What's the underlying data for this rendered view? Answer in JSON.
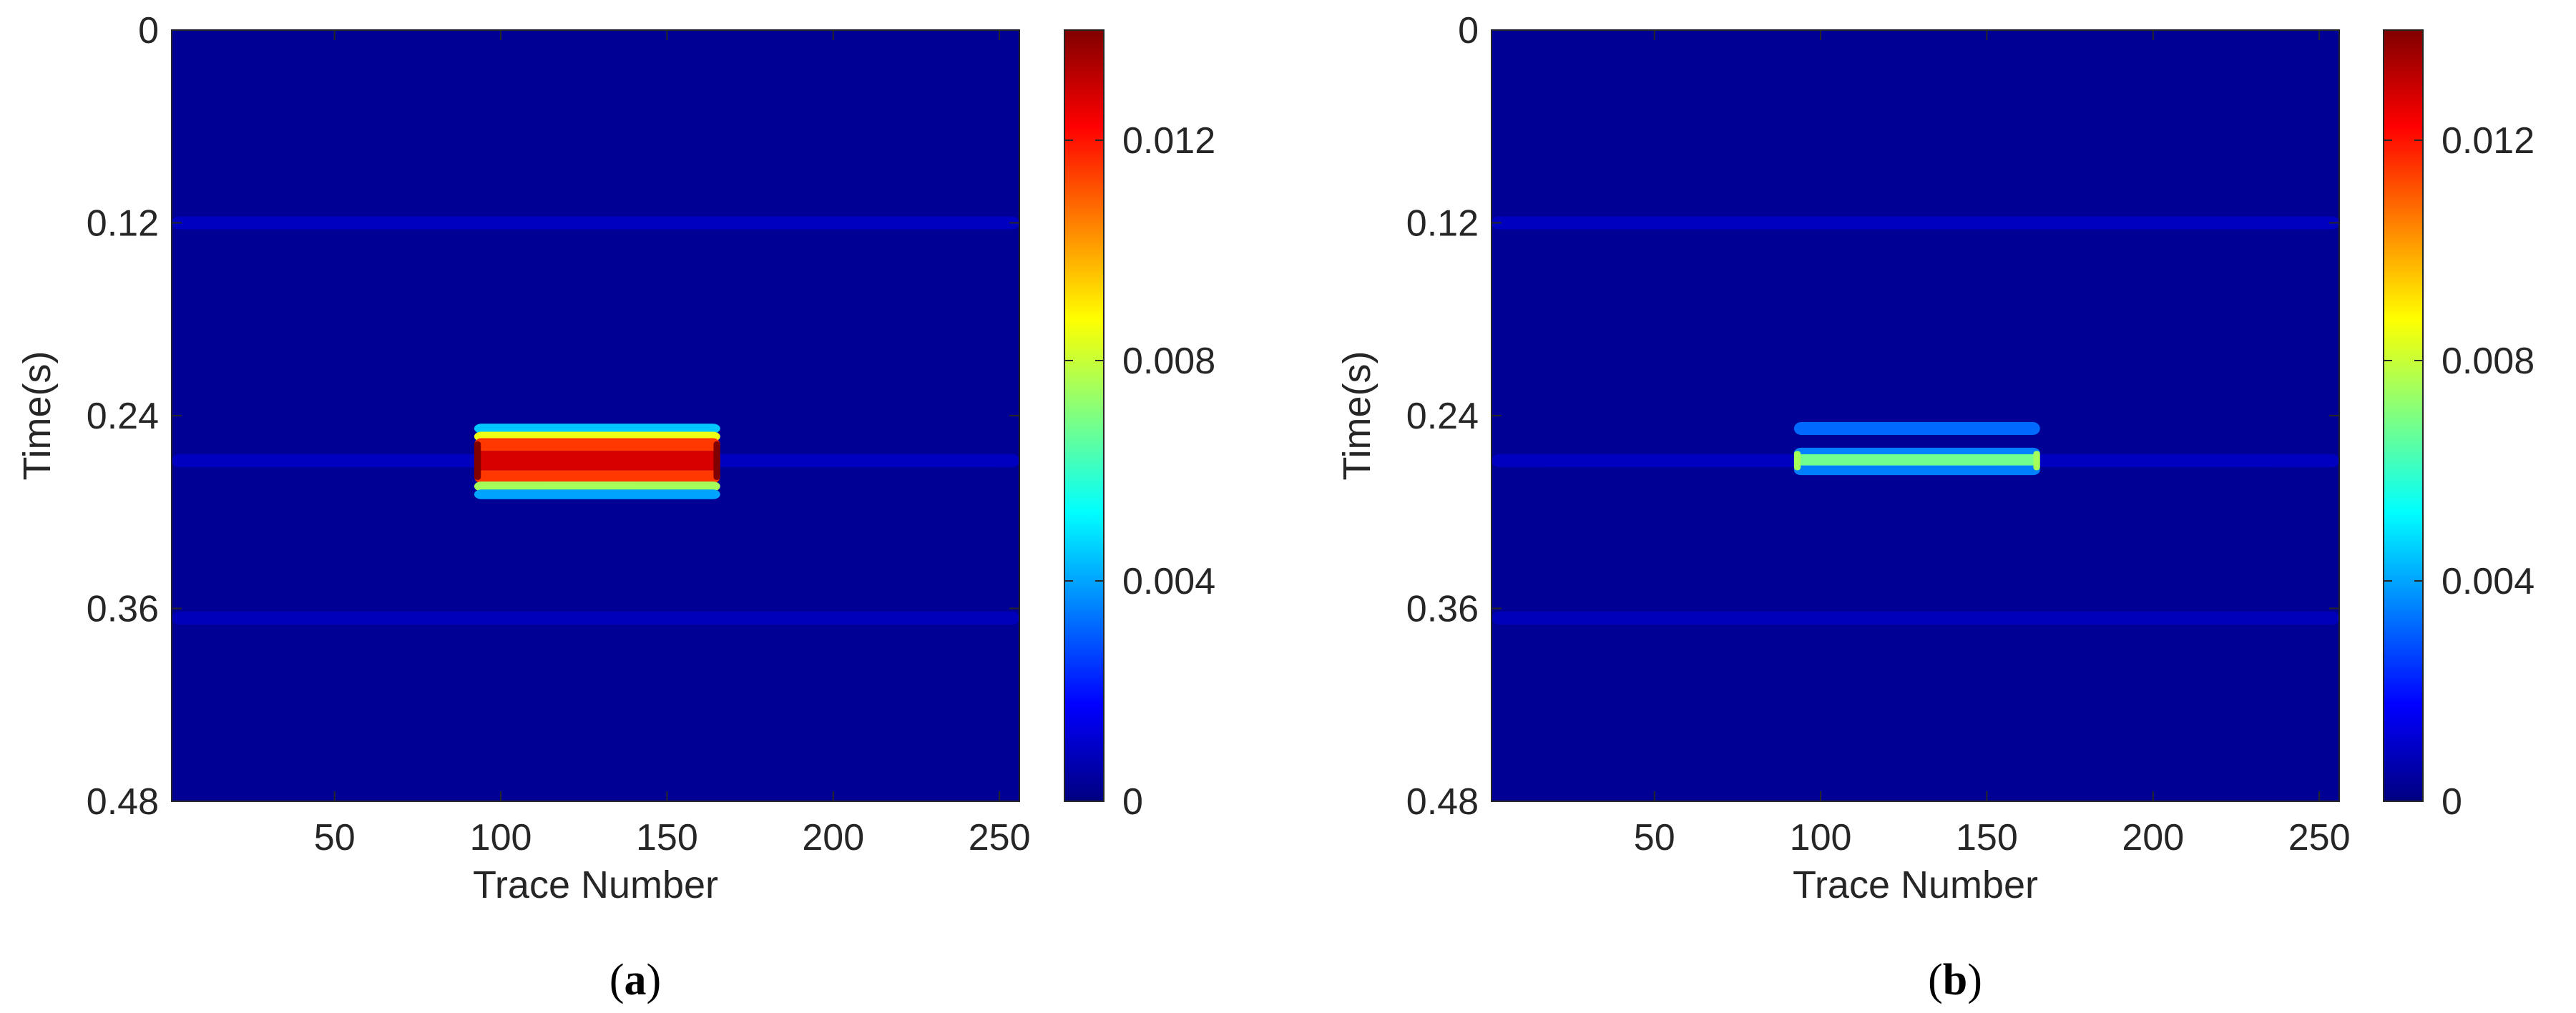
{
  "chart_data": [
    {
      "type": "heatmap",
      "panel_label": "a",
      "xlabel": "Trace Number",
      "ylabel": "Time(s)",
      "xlim": [
        1,
        256
      ],
      "ylim": [
        0,
        0.48
      ],
      "x_ticks": [
        50,
        100,
        150,
        200,
        250
      ],
      "y_ticks": [
        0,
        0.12,
        0.24,
        0.36,
        0.48
      ],
      "y_tick_labels": [
        "0",
        "0.12",
        "0.24",
        "0.36",
        "0.48"
      ],
      "colormap": "jet",
      "colorbar": {
        "min": 0,
        "max": 0.014,
        "ticks": [
          0,
          0.004,
          0.008,
          0.012
        ],
        "tick_labels": [
          "0",
          "0.004",
          "0.008",
          "0.012"
        ]
      },
      "background_value": 0.0003,
      "features": [
        {
          "kind": "band",
          "x_range": [
            1,
            256
          ],
          "t_center": 0.12,
          "t_half_width": 0.004,
          "value": 0.0009
        },
        {
          "kind": "band",
          "x_range": [
            1,
            256
          ],
          "t_center": 0.268,
          "t_half_width": 0.004,
          "value": 0.0009
        },
        {
          "kind": "band",
          "x_range": [
            1,
            256
          ],
          "t_center": 0.366,
          "t_half_width": 0.004,
          "value": 0.0008
        },
        {
          "kind": "band",
          "x_range": [
            92,
            166
          ],
          "t_center": 0.248,
          "t_half_width": 0.003,
          "value": 0.0045
        },
        {
          "kind": "band",
          "x_range": [
            92,
            166
          ],
          "t_center": 0.253,
          "t_half_width": 0.003,
          "value": 0.0085
        },
        {
          "kind": "band",
          "x_range": [
            92,
            166
          ],
          "t_center": 0.258,
          "t_half_width": 0.004,
          "value": 0.0115
        },
        {
          "kind": "band",
          "x_range": [
            92,
            166
          ],
          "t_center": 0.268,
          "t_half_width": 0.006,
          "value": 0.0128
        },
        {
          "kind": "band",
          "x_range": [
            92,
            166
          ],
          "t_center": 0.278,
          "t_half_width": 0.004,
          "value": 0.0115
        },
        {
          "kind": "band",
          "x_range": [
            92,
            166
          ],
          "t_center": 0.284,
          "t_half_width": 0.003,
          "value": 0.0075
        },
        {
          "kind": "band",
          "x_range": [
            92,
            166
          ],
          "t_center": 0.289,
          "t_half_width": 0.003,
          "value": 0.004
        },
        {
          "kind": "band",
          "x_range": [
            92,
            94
          ],
          "t_center": 0.268,
          "t_half_width": 0.012,
          "value": 0.014
        },
        {
          "kind": "band",
          "x_range": [
            164,
            166
          ],
          "t_center": 0.268,
          "t_half_width": 0.012,
          "value": 0.014
        }
      ]
    },
    {
      "type": "heatmap",
      "panel_label": "b",
      "xlabel": "Trace Number",
      "ylabel": "Time(s)",
      "xlim": [
        1,
        256
      ],
      "ylim": [
        0,
        0.48
      ],
      "x_ticks": [
        50,
        100,
        150,
        200,
        250
      ],
      "y_ticks": [
        0,
        0.12,
        0.24,
        0.36,
        0.48
      ],
      "y_tick_labels": [
        "0",
        "0.12",
        "0.24",
        "0.36",
        "0.48"
      ],
      "colormap": "jet",
      "colorbar": {
        "min": 0,
        "max": 0.014,
        "ticks": [
          0,
          0.004,
          0.008,
          0.012
        ],
        "tick_labels": [
          "0",
          "0.004",
          "0.008",
          "0.012"
        ]
      },
      "background_value": 0.0003,
      "features": [
        {
          "kind": "band",
          "x_range": [
            1,
            256
          ],
          "t_center": 0.12,
          "t_half_width": 0.004,
          "value": 0.0009
        },
        {
          "kind": "band",
          "x_range": [
            1,
            256
          ],
          "t_center": 0.268,
          "t_half_width": 0.004,
          "value": 0.0009
        },
        {
          "kind": "band",
          "x_range": [
            1,
            256
          ],
          "t_center": 0.366,
          "t_half_width": 0.004,
          "value": 0.0008
        },
        {
          "kind": "band",
          "x_range": [
            92,
            166
          ],
          "t_center": 0.248,
          "t_half_width": 0.004,
          "value": 0.0032
        },
        {
          "kind": "band",
          "x_range": [
            92,
            166
          ],
          "t_center": 0.263,
          "t_half_width": 0.003,
          "value": 0.0035
        },
        {
          "kind": "band",
          "x_range": [
            92,
            166
          ],
          "t_center": 0.268,
          "t_half_width": 0.004,
          "value": 0.0068
        },
        {
          "kind": "band",
          "x_range": [
            92,
            166
          ],
          "t_center": 0.274,
          "t_half_width": 0.003,
          "value": 0.0035
        },
        {
          "kind": "band",
          "x_range": [
            92,
            94
          ],
          "t_center": 0.268,
          "t_half_width": 0.006,
          "value": 0.0075
        },
        {
          "kind": "band",
          "x_range": [
            164,
            166
          ],
          "t_center": 0.268,
          "t_half_width": 0.006,
          "value": 0.0075
        }
      ]
    }
  ]
}
